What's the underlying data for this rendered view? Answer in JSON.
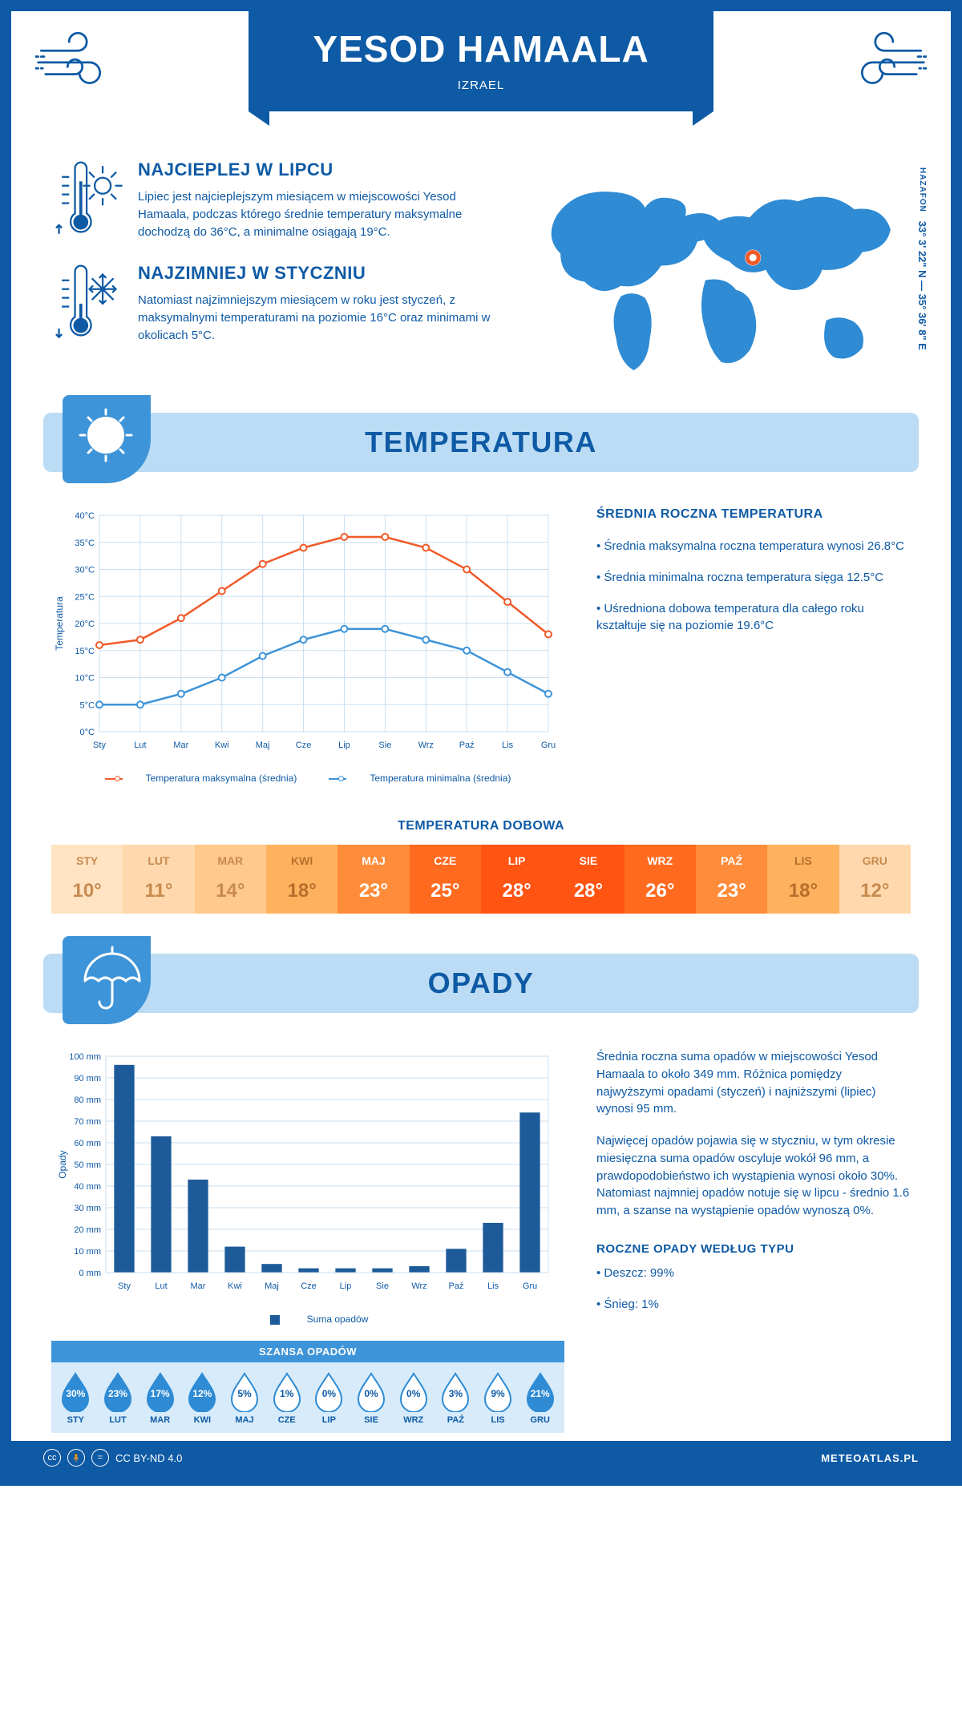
{
  "header": {
    "title": "YESOD HAMAALA",
    "subtitle": "IZRAEL"
  },
  "coords": {
    "lat": "33° 3' 22\" N",
    "lon": "35° 36' 8\" E",
    "region": "HAZAFON"
  },
  "info": {
    "warm": {
      "title": "NAJCIEPLEJ W LIPCU",
      "text": "Lipiec jest najcieplejszym miesiącem w miejscowości Yesod Hamaala, podczas którego średnie temperatury maksymalne dochodzą do 36°C, a minimalne osiągają 19°C."
    },
    "cold": {
      "title": "NAJZIMNIEJ W STYCZNIU",
      "text": "Natomiast najzimniejszym miesiącem w roku jest styczeń, z maksymalnymi temperaturami na poziomie 16°C oraz minimami w okolicach 5°C."
    }
  },
  "temperature_section": {
    "title": "TEMPERATURA",
    "chart": {
      "type": "line",
      "ylabel": "Temperatura",
      "ylim": [
        0,
        40
      ],
      "ytick_step": 5,
      "ytick_suffix": "°C",
      "months": [
        "Sty",
        "Lut",
        "Mar",
        "Kwi",
        "Maj",
        "Cze",
        "Lip",
        "Sie",
        "Wrz",
        "Paź",
        "Lis",
        "Gru"
      ],
      "series": {
        "max": {
          "color": "#f15a29",
          "label": "Temperatura maksymalna (średnia)",
          "values": [
            16,
            17,
            21,
            26,
            31,
            34,
            36,
            36,
            34,
            30,
            24,
            18
          ]
        },
        "min": {
          "color": "#3e94d8",
          "label": "Temperatura minimalna (średnia)",
          "values": [
            5,
            5,
            7,
            10,
            14,
            17,
            19,
            19,
            17,
            15,
            11,
            7
          ]
        }
      },
      "grid_color": "#c9dff2",
      "background_color": "#ffffff",
      "marker": "circle",
      "marker_fill": "#ffffff",
      "line_width": 2.5
    },
    "summary": {
      "title": "ŚREDNIA ROCZNA TEMPERATURA",
      "bullets": [
        "Średnia maksymalna roczna temperatura wynosi 26.8°C",
        "Średnia minimalna roczna temperatura sięga 12.5°C",
        "Uśredniona dobowa temperatura dla całego roku kształtuje się na poziomie 19.6°C"
      ]
    },
    "daily": {
      "title": "TEMPERATURA DOBOWA",
      "months": [
        "STY",
        "LUT",
        "MAR",
        "KWI",
        "MAJ",
        "CZE",
        "LIP",
        "SIE",
        "WRZ",
        "PAŹ",
        "LIS",
        "GRU"
      ],
      "values": [
        "10°",
        "11°",
        "14°",
        "18°",
        "23°",
        "25°",
        "28°",
        "28°",
        "26°",
        "23°",
        "18°",
        "12°"
      ],
      "cell_colors": [
        "#ffe3c2",
        "#ffd9ad",
        "#ffc98c",
        "#ffb25e",
        "#ff8c3a",
        "#ff6a1f",
        "#ff5412",
        "#ff5412",
        "#ff6a1f",
        "#ff8c3a",
        "#ffb25e",
        "#ffd9ad"
      ],
      "text_colors": [
        "#c78a4e",
        "#c78a4e",
        "#c78a4e",
        "#b86f2e",
        "#fff",
        "#fff",
        "#fff",
        "#fff",
        "#fff",
        "#fff",
        "#b86f2e",
        "#c78a4e"
      ]
    }
  },
  "precip_section": {
    "title": "OPADY",
    "chart": {
      "type": "bar",
      "ylabel": "Opady",
      "ylim": [
        0,
        100
      ],
      "ytick_step": 10,
      "ytick_suffix": " mm",
      "months": [
        "Sty",
        "Lut",
        "Mar",
        "Kwi",
        "Maj",
        "Cze",
        "Lip",
        "Sie",
        "Wrz",
        "Paź",
        "Lis",
        "Gru"
      ],
      "values": [
        96,
        63,
        43,
        12,
        4,
        2,
        2,
        2,
        3,
        11,
        23,
        74
      ],
      "bar_color": "#1d5a9a",
      "grid_color": "#c9dff2",
      "legend": "Suma opadów"
    },
    "text": {
      "p1": "Średnia roczna suma opadów w miejscowości Yesod Hamaala to około 349 mm. Różnica pomiędzy najwyższymi opadami (styczeń) i najniższymi (lipiec) wynosi 95 mm.",
      "p2": "Najwięcej opadów pojawia się w styczniu, w tym okresie miesięczna suma opadów oscyluje wokół 96 mm, a prawdopodobieństwo ich wystąpienia wynosi około 30%. Natomiast najmniej opadów notuje się w lipcu - średnio 1.6 mm, a szanse na wystąpienie opadów wynoszą 0%.",
      "type_title": "ROCZNE OPADY WEDŁUG TYPU",
      "type_bullets": [
        "Deszcz: 99%",
        "Śnieg: 1%"
      ]
    },
    "chance": {
      "title": "SZANSA OPADÓW",
      "months": [
        "STY",
        "LUT",
        "MAR",
        "KWI",
        "MAJ",
        "CZE",
        "LIP",
        "SIE",
        "WRZ",
        "PAŹ",
        "LIS",
        "GRU"
      ],
      "values": [
        30,
        23,
        17,
        12,
        5,
        1,
        0,
        0,
        0,
        3,
        9,
        21
      ]
    }
  },
  "footer": {
    "license": "CC BY-ND 4.0",
    "site": "METEOATLAS.PL"
  }
}
